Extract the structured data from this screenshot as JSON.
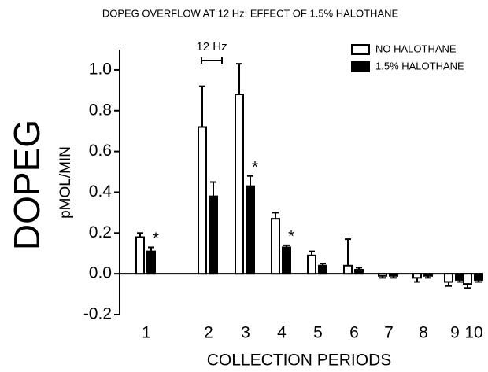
{
  "chart_data": {
    "type": "bar",
    "title": "DOPEG OVERFLOW AT 12 Hz:  EFFECT OF 1.5% HALOTHANE",
    "ylabel": "DOPEG",
    "ylabel_units": "pMOL/MIN",
    "xlabel": "COLLECTION PERIODS",
    "bracket_label": "12 Hz",
    "categories": [
      "1",
      "2",
      "3",
      "4",
      "5",
      "6",
      "7",
      "8",
      "9",
      "10"
    ],
    "series": [
      {
        "name": "NO HALOTHANE",
        "color": "#ffffff",
        "values": [
          0.18,
          0.72,
          0.88,
          0.27,
          0.09,
          0.04,
          -0.01,
          -0.02,
          -0.04,
          -0.05
        ],
        "errors": [
          0.02,
          0.2,
          0.15,
          0.03,
          0.02,
          0.13,
          0.01,
          0.02,
          0.02,
          0.02
        ]
      },
      {
        "name": "1.5% HALOTHANE",
        "color": "#000000",
        "values": [
          0.11,
          0.38,
          0.43,
          0.13,
          0.04,
          0.02,
          -0.01,
          -0.01,
          -0.03,
          -0.03
        ],
        "errors": [
          0.02,
          0.07,
          0.05,
          0.01,
          0.01,
          0.01,
          0.01,
          0.01,
          0.01,
          0.01
        ]
      }
    ],
    "markers": [
      "*",
      null,
      "*",
      "*",
      null,
      null,
      null,
      null,
      null,
      null
    ],
    "ylim": [
      -0.2,
      1.1
    ],
    "yticks": [
      -0.2,
      {
        "value": 0,
        "label": "0.0"
      },
      0.2,
      0.4,
      0.6,
      0.8,
      {
        "value": 1,
        "label": "1.0"
      }
    ],
    "legend": "top-right"
  }
}
